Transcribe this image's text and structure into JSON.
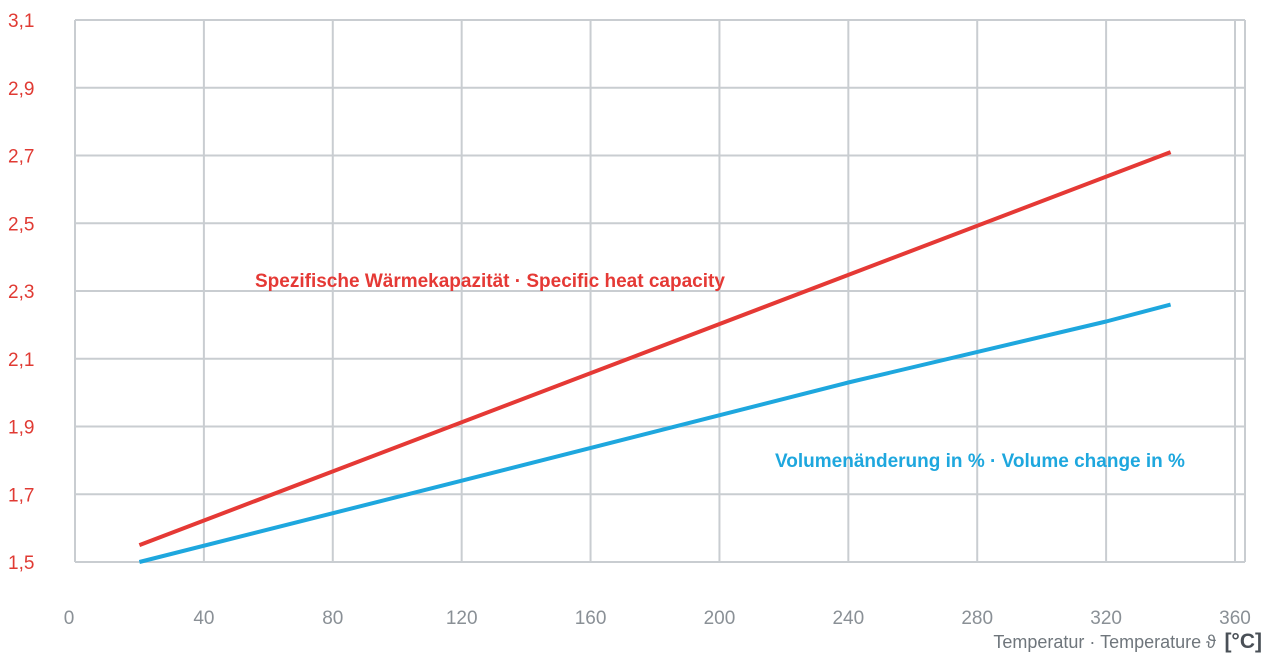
{
  "chart_data": {
    "type": "line",
    "title": "",
    "xlabel": "Temperatur · Temperature ϑ",
    "xlabel_unit": "[°C]",
    "ylabel": "",
    "xlim": [
      0,
      360
    ],
    "ylim": [
      1.5,
      3.1
    ],
    "x_ticks": [
      "0",
      "40",
      "80",
      "120",
      "160",
      "200",
      "240",
      "280",
      "320",
      "360"
    ],
    "y_ticks": [
      "1,5",
      "1,7",
      "1,9",
      "2,1",
      "2,3",
      "2,5",
      "2,7",
      "2,9",
      "3,1"
    ],
    "grid": true,
    "series": [
      {
        "name": "Spezifische Wärmekapazität · Specific heat capacity",
        "color": "#e53935",
        "points": [
          [
            20,
            1.55
          ],
          [
            340,
            2.71
          ]
        ]
      },
      {
        "name": "Volumenänderung in % · Volume change in %",
        "color": "#1ea7de",
        "points": [
          [
            20,
            1.5
          ],
          [
            120,
            1.74
          ],
          [
            240,
            2.03
          ],
          [
            320,
            2.21
          ],
          [
            340,
            2.26
          ]
        ]
      }
    ]
  }
}
